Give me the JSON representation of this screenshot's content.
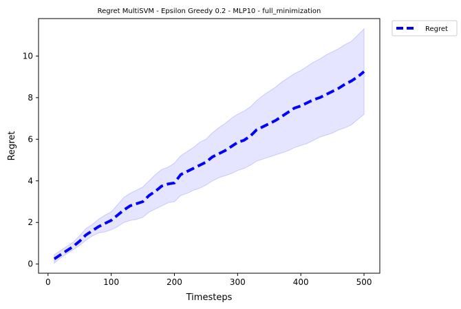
{
  "chart_data": {
    "type": "line",
    "title": "Regret MultiSVM - Epsilon Greedy 0.2 - MLP10 - full_minimization",
    "xlabel": "Timesteps",
    "ylabel": "Regret",
    "xlim": [
      -15,
      525
    ],
    "ylim": [
      -0.44,
      11.8
    ],
    "xticks": [
      "0",
      "100",
      "200",
      "300",
      "400",
      "500"
    ],
    "yticks": [
      "0",
      "2",
      "4",
      "6",
      "8",
      "10"
    ],
    "grid": false,
    "legend_position": "outside-top-right",
    "colors": {
      "line": "#0000ff",
      "band": "#e5e5ff",
      "band_edge": "#c8c8ff"
    },
    "series": [
      {
        "name": "Regret",
        "style": "dashed",
        "x": [
          10,
          20,
          30,
          40,
          50,
          60,
          70,
          80,
          90,
          100,
          110,
          120,
          130,
          140,
          150,
          160,
          170,
          180,
          190,
          200,
          210,
          220,
          230,
          240,
          250,
          260,
          270,
          280,
          290,
          300,
          310,
          320,
          330,
          340,
          350,
          360,
          370,
          380,
          390,
          400,
          410,
          420,
          430,
          440,
          450,
          460,
          470,
          480,
          490,
          500
        ],
        "y": [
          0.25,
          0.45,
          0.65,
          0.85,
          1.1,
          1.4,
          1.6,
          1.8,
          1.95,
          2.1,
          2.35,
          2.6,
          2.8,
          2.9,
          3.0,
          3.3,
          3.5,
          3.75,
          3.85,
          3.9,
          4.3,
          4.45,
          4.6,
          4.75,
          4.9,
          5.15,
          5.3,
          5.45,
          5.65,
          5.85,
          5.95,
          6.15,
          6.45,
          6.6,
          6.75,
          6.9,
          7.1,
          7.3,
          7.5,
          7.6,
          7.75,
          7.9,
          8.0,
          8.15,
          8.3,
          8.45,
          8.65,
          8.8,
          9.0,
          9.25
        ],
        "lower": [
          0.05,
          0.3,
          0.5,
          0.7,
          0.9,
          1.15,
          1.35,
          1.5,
          1.55,
          1.65,
          1.8,
          2.0,
          2.1,
          2.15,
          2.25,
          2.5,
          2.65,
          2.8,
          2.95,
          3.0,
          3.3,
          3.4,
          3.55,
          3.65,
          3.8,
          4.0,
          4.15,
          4.25,
          4.35,
          4.5,
          4.6,
          4.75,
          4.95,
          5.05,
          5.15,
          5.25,
          5.35,
          5.45,
          5.6,
          5.7,
          5.8,
          5.95,
          6.1,
          6.2,
          6.3,
          6.45,
          6.55,
          6.7,
          6.95,
          7.2
        ],
        "upper": [
          0.45,
          0.65,
          0.85,
          1.05,
          1.35,
          1.7,
          1.9,
          2.15,
          2.35,
          2.5,
          2.85,
          3.2,
          3.4,
          3.55,
          3.7,
          4.0,
          4.3,
          4.55,
          4.65,
          4.85,
          5.2,
          5.4,
          5.6,
          5.85,
          6.0,
          6.3,
          6.55,
          6.75,
          7.0,
          7.2,
          7.35,
          7.55,
          7.85,
          8.1,
          8.3,
          8.5,
          8.75,
          8.95,
          9.15,
          9.3,
          9.5,
          9.7,
          9.85,
          10.05,
          10.2,
          10.35,
          10.55,
          10.7,
          11.0,
          11.3
        ]
      }
    ]
  }
}
